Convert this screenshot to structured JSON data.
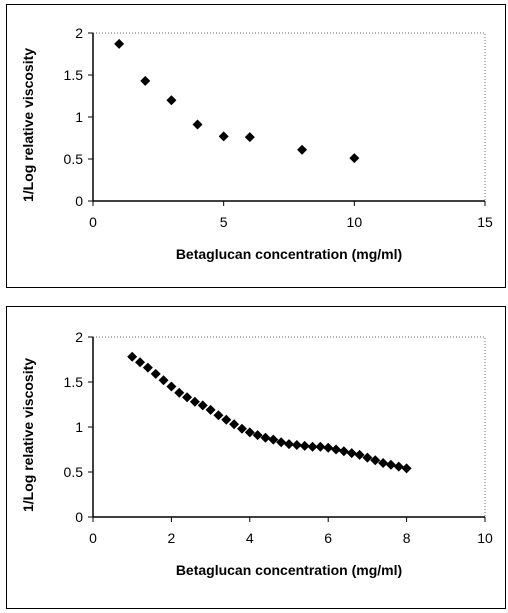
{
  "chart_data": [
    {
      "type": "scatter",
      "title": "",
      "xlabel": "Betaglucan concentration (mg/ml)",
      "ylabel": "1/Log relative viscosity",
      "xlim": [
        0,
        15
      ],
      "ylim": [
        0,
        2
      ],
      "x_ticks": [
        "0",
        "5",
        "10",
        "15"
      ],
      "y_ticks": [
        "0",
        "0.5",
        "1",
        "1.5",
        "2"
      ],
      "grid": false,
      "marker": "diamond",
      "series": [
        {
          "x": [
            1,
            2,
            3,
            4,
            5,
            6,
            8,
            10
          ],
          "y": [
            1.87,
            1.43,
            1.2,
            0.91,
            0.77,
            0.76,
            0.61,
            0.51
          ]
        }
      ]
    },
    {
      "type": "scatter",
      "title": "",
      "xlabel": "Betaglucan concentration (mg/ml)",
      "ylabel": "1/Log relative viscosity",
      "xlim": [
        0,
        10
      ],
      "ylim": [
        0,
        2
      ],
      "x_ticks": [
        "0",
        "2",
        "4",
        "6",
        "8",
        "10"
      ],
      "y_ticks": [
        "0",
        "0.5",
        "1",
        "1.5",
        "2"
      ],
      "grid": false,
      "marker": "diamond",
      "series": [
        {
          "x": [
            1.0,
            1.2,
            1.4,
            1.6,
            1.8,
            2.0,
            2.2,
            2.4,
            2.6,
            2.8,
            3.0,
            3.2,
            3.4,
            3.6,
            3.8,
            4.0,
            4.2,
            4.4,
            4.6,
            4.8,
            5.0,
            5.2,
            5.4,
            5.6,
            5.8,
            6.0,
            6.2,
            6.4,
            6.6,
            6.8,
            7.0,
            7.2,
            7.4,
            7.6,
            7.8,
            8.0
          ],
          "y": [
            1.78,
            1.72,
            1.66,
            1.59,
            1.52,
            1.45,
            1.38,
            1.33,
            1.28,
            1.24,
            1.19,
            1.13,
            1.08,
            1.03,
            0.98,
            0.94,
            0.91,
            0.88,
            0.86,
            0.83,
            0.81,
            0.8,
            0.79,
            0.78,
            0.78,
            0.77,
            0.75,
            0.73,
            0.71,
            0.69,
            0.66,
            0.63,
            0.6,
            0.58,
            0.56,
            0.54
          ]
        }
      ]
    }
  ]
}
